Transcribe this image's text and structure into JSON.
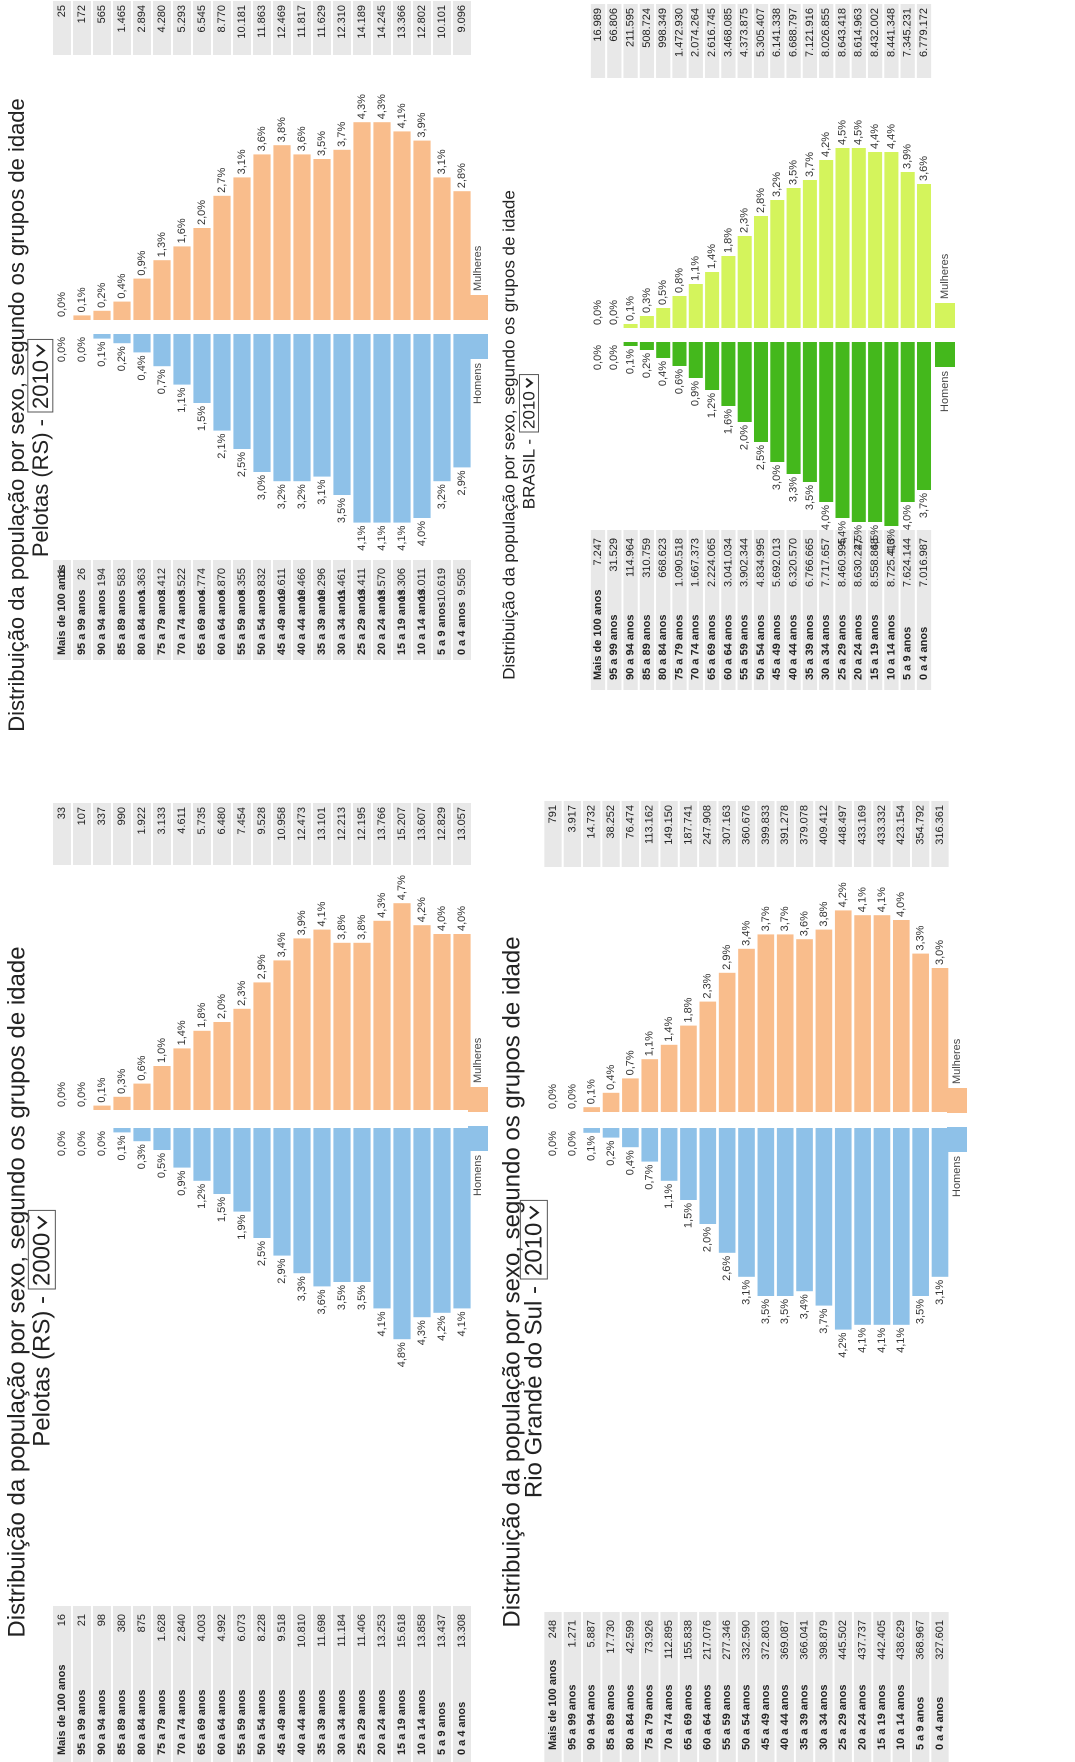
{
  "chart_data": [
    {
      "type": "bar",
      "title": "Distribuição da população por sexo, segundo os grupos de idade",
      "subtitle": "Pelotas (RS) -",
      "selector": "2000",
      "categories": [
        "Mais de 100 anos",
        "95 a 99 anos",
        "90 a 94 anos",
        "85 a 89 anos",
        "80 a 84 anos",
        "75 a 79 anos",
        "70 a 74 anos",
        "65 a 69 anos",
        "60 a 64 anos",
        "55 a 59 anos",
        "50 a 54 anos",
        "45 a 49 anos",
        "40 a 44 anos",
        "35 a 39 anos",
        "30 a 34 anos",
        "25 a 29 anos",
        "20 a 24 anos",
        "15 a 19 anos",
        "10 a 14 anos",
        "5 a 9 anos",
        "0 a 4 anos"
      ],
      "series": [
        {
          "name": "Homens",
          "color": "#8ec1e8",
          "values": [
            0,
            0,
            0,
            0.1,
            0.3,
            0.5,
            0.9,
            1.2,
            1.5,
            1.9,
            2.5,
            2.9,
            3.3,
            3.6,
            3.5,
            3.5,
            4.1,
            4.8,
            4.3,
            4.2,
            4.1
          ],
          "value_labels": [
            "0,0%",
            "0,0%",
            "0,0%",
            "0,1%",
            "0,3%",
            "0,5%",
            "0,9%",
            "1,2%",
            "1,5%",
            "1,9%",
            "2,5%",
            "2,9%",
            "3,3%",
            "3,6%",
            "3,5%",
            "3,5%",
            "4,1%",
            "4,8%",
            "4,3%",
            "4,2%",
            "4,1%"
          ],
          "population": [
            16,
            21,
            98,
            380,
            875,
            1628,
            2840,
            4003,
            4992,
            6073,
            8228,
            9518,
            10810,
            11698,
            11184,
            11406,
            13253,
            15618,
            13858,
            13437,
            13308
          ],
          "population_labels": [
            "16",
            "21",
            "98",
            "380",
            "875",
            "1.628",
            "2.840",
            "4.003",
            "4.992",
            "6.073",
            "8.228",
            "9.518",
            "10.810",
            "11.698",
            "11.184",
            "11.406",
            "13.253",
            "15.618",
            "13.858",
            "13.437",
            "13.308"
          ]
        },
        {
          "name": "Mulheres",
          "color": "#f9bd8c",
          "values": [
            0,
            0,
            0.1,
            0.3,
            0.6,
            1.0,
            1.4,
            1.8,
            2.0,
            2.3,
            2.9,
            3.4,
            3.9,
            4.1,
            3.8,
            3.8,
            4.3,
            4.7,
            4.2,
            4.0,
            4.0
          ],
          "value_labels": [
            "0,0%",
            "0,0%",
            "0,1%",
            "0,3%",
            "0,6%",
            "1,0%",
            "1,4%",
            "1,8%",
            "2,0%",
            "2,3%",
            "2,9%",
            "3,4%",
            "3,9%",
            "4,1%",
            "3,8%",
            "3,8%",
            "4,3%",
            "4,7%",
            "4,2%",
            "4,0%",
            "4,0%"
          ],
          "population": [
            33,
            107,
            337,
            990,
            1922,
            3133,
            4611,
            5735,
            6480,
            7454,
            9528,
            10958,
            12473,
            13101,
            12213,
            12195,
            13766,
            15207,
            13607,
            12829,
            13057
          ],
          "population_labels": [
            "33",
            "107",
            "337",
            "990",
            "1.922",
            "3.133",
            "4.611",
            "5.735",
            "6.480",
            "7.454",
            "9.528",
            "10.958",
            "12.473",
            "13.101",
            "12.213",
            "12.195",
            "13.766",
            "15.207",
            "13.607",
            "12.829",
            "13.057"
          ]
        }
      ]
    },
    {
      "type": "bar",
      "title": "Distribuição da população por sexo, segundo os grupos de idade",
      "subtitle": "Pelotas (RS) -",
      "selector": "2010",
      "categories": [
        "Mais de 100 anos",
        "95 a 99 anos",
        "90 a 94 anos",
        "85 a 89 anos",
        "80 a 84 anos",
        "75 a 79 anos",
        "70 a 74 anos",
        "65 a 69 anos",
        "60 a 64 anos",
        "55 a 59 anos",
        "50 a 54 anos",
        "45 a 49 anos",
        "40 a 44 anos",
        "35 a 39 anos",
        "30 a 34 anos",
        "25 a 29 anos",
        "20 a 24 anos",
        "15 a 19 anos",
        "10 a 14 anos",
        "5 a 9 anos",
        "0 a 4 anos"
      ],
      "series": [
        {
          "name": "Homens",
          "color": "#8ec1e8",
          "values": [
            0,
            0,
            0.1,
            0.2,
            0.4,
            0.7,
            1.1,
            1.5,
            2.1,
            2.5,
            3.0,
            3.2,
            3.2,
            3.1,
            3.5,
            4.1,
            4.1,
            4.1,
            4.0,
            3.2,
            2.9
          ],
          "value_labels": [
            "0,0%",
            "0,0%",
            "0,1%",
            "0,2%",
            "0,4%",
            "0,7%",
            "1,1%",
            "1,5%",
            "2,1%",
            "2,5%",
            "3,0%",
            "3,2%",
            "3,2%",
            "3,1%",
            "3,5%",
            "4,1%",
            "4,1%",
            "4,1%",
            "4,0%",
            "3,2%",
            "2,9%"
          ],
          "population": [
            11,
            26,
            194,
            583,
            1363,
            2412,
            3522,
            4774,
            6870,
            8355,
            9832,
            10611,
            10466,
            10296,
            11461,
            13411,
            13570,
            13306,
            13011,
            10619,
            9505
          ],
          "population_labels": [
            "11",
            "26",
            "194",
            "583",
            "1.363",
            "2.412",
            "3.522",
            "4.774",
            "6.870",
            "8.355",
            "9.832",
            "10.611",
            "10.466",
            "10.296",
            "11.461",
            "13.411",
            "13.570",
            "13.306",
            "13.011",
            "10.619",
            "9.505"
          ]
        },
        {
          "name": "Mulheres",
          "color": "#f9bd8c",
          "values": [
            0,
            0.1,
            0.2,
            0.4,
            0.9,
            1.3,
            1.6,
            2.0,
            2.7,
            3.1,
            3.6,
            3.8,
            3.6,
            3.5,
            3.7,
            4.3,
            4.3,
            4.1,
            3.9,
            3.1,
            2.8
          ],
          "value_labels": [
            "0,0%",
            "0,1%",
            "0,2%",
            "0,4%",
            "0,9%",
            "1,3%",
            "1,6%",
            "2,0%",
            "2,7%",
            "3,1%",
            "3,6%",
            "3,8%",
            "3,6%",
            "3,5%",
            "3,7%",
            "4,3%",
            "4,3%",
            "4,1%",
            "3,9%",
            "3,1%",
            "2,8%"
          ],
          "population": [
            25,
            172,
            565,
            1465,
            2894,
            4280,
            5293,
            6545,
            8770,
            10181,
            11863,
            12469,
            11817,
            11629,
            12310,
            14189,
            14245,
            13366,
            12802,
            10101,
            9096
          ],
          "population_labels": [
            "25",
            "172",
            "565",
            "1.465",
            "2.894",
            "4.280",
            "5.293",
            "6.545",
            "8.770",
            "10.181",
            "11.863",
            "12.469",
            "11.817",
            "11.629",
            "12.310",
            "14.189",
            "14.245",
            "13.366",
            "12.802",
            "10.101",
            "9.096"
          ]
        }
      ]
    },
    {
      "type": "bar",
      "title": "Distribuição da população por sexo, segundo os grupos de idade",
      "subtitle": "BRASIL -",
      "selector": "2010",
      "categories": [
        "Mais de 100 anos",
        "95 a 99 anos",
        "90 a 94 anos",
        "85 a 89 anos",
        "80 a 84 anos",
        "75 a 79 anos",
        "70 a 74 anos",
        "65 a 69 anos",
        "60 a 64 anos",
        "55 a 59 anos",
        "50 a 54 anos",
        "45 a 49 anos",
        "40 a 44 anos",
        "35 a 39 anos",
        "30 a 34 anos",
        "25 a 29 anos",
        "20 a 24 anos",
        "15 a 19 anos",
        "10 a 14 anos",
        "5 a 9 anos",
        "0 a 4 anos"
      ],
      "series": [
        {
          "name": "Homens",
          "color": "#44b81c",
          "values": [
            0,
            0,
            0.1,
            0.2,
            0.4,
            0.6,
            0.9,
            1.2,
            1.6,
            2.0,
            2.5,
            3.0,
            3.3,
            3.5,
            4.0,
            4.4,
            4.5,
            4.5,
            4.6,
            4.0,
            3.7
          ],
          "value_labels": [
            "0,0%",
            "0,0%",
            "0,1%",
            "0,2%",
            "0,4%",
            "0,6%",
            "0,9%",
            "1,2%",
            "1,6%",
            "2,0%",
            "2,5%",
            "3,0%",
            "3,3%",
            "3,5%",
            "4,0%",
            "4,4%",
            "4,5%",
            "4,5%",
            "4,6%",
            "4,0%",
            "3,7%"
          ],
          "population": [
            7247,
            31529,
            114964,
            310759,
            668623,
            1090518,
            1667373,
            2224065,
            3041034,
            3902344,
            4834995,
            5692013,
            6320570,
            6766665,
            7717657,
            8460995,
            8630227,
            8558868,
            8725413,
            7624144,
            7016987
          ],
          "population_labels": [
            "7.247",
            "31.529",
            "114.964",
            "310.759",
            "668.623",
            "1.090.518",
            "1.667.373",
            "2.224.065",
            "3.041.034",
            "3.902.344",
            "4.834.995",
            "5.692.013",
            "6.320.570",
            "6.766.665",
            "7.717.657",
            "8.460.995",
            "8.630.227",
            "8.558.868",
            "8.725.413",
            "7.624.144",
            "7.016.987"
          ]
        },
        {
          "name": "Mulheres",
          "color": "#d4f45c",
          "values": [
            0,
            0,
            0.1,
            0.3,
            0.5,
            0.8,
            1.1,
            1.4,
            1.8,
            2.3,
            2.8,
            3.2,
            3.5,
            3.7,
            4.2,
            4.5,
            4.5,
            4.4,
            4.4,
            3.9,
            3.6
          ],
          "value_labels": [
            "0,0%",
            "0,0%",
            "0,1%",
            "0,3%",
            "0,5%",
            "0,8%",
            "1,1%",
            "1,4%",
            "1,8%",
            "2,3%",
            "2,8%",
            "3,2%",
            "3,5%",
            "3,7%",
            "4,2%",
            "4,5%",
            "4,5%",
            "4,4%",
            "4,4%",
            "3,9%",
            "3,6%"
          ],
          "population": [
            16989,
            66806,
            211595,
            508724,
            998349,
            1472930,
            2074264,
            2616745,
            3468085,
            4373875,
            5305407,
            6141338,
            6688797,
            7121916,
            8026855,
            8643418,
            8614963,
            8432002,
            8441348,
            7345231,
            6779172
          ],
          "population_labels": [
            "16.989",
            "66.806",
            "211.595",
            "508.724",
            "998.349",
            "1.472.930",
            "2.074.264",
            "2.616.745",
            "3.468.085",
            "4.373.875",
            "5.305.407",
            "6.141.338",
            "6.688.797",
            "7.121.916",
            "8.026.855",
            "8.643.418",
            "8.614.963",
            "8.432.002",
            "8.441.348",
            "7.345.231",
            "6.779.172"
          ]
        }
      ]
    },
    {
      "type": "bar",
      "title": "Distribuição da população por sexo, segundo os grupos de idade",
      "subtitle": "Rio Grande do Sul -",
      "selector": "2010",
      "categories": [
        "Mais de 100 anos",
        "95 a 99 anos",
        "90 a 94 anos",
        "85 a 89 anos",
        "80 a 84 anos",
        "75 a 79 anos",
        "70 a 74 anos",
        "65 a 69 anos",
        "60 a 64 anos",
        "55 a 59 anos",
        "50 a 54 anos",
        "45 a 49 anos",
        "40 a 44 anos",
        "35 a 39 anos",
        "30 a 34 anos",
        "25 a 29 anos",
        "20 a 24 anos",
        "15 a 19 anos",
        "10 a 14 anos",
        "5 a 9 anos",
        "0 a 4 anos"
      ],
      "series": [
        {
          "name": "Homens",
          "color": "#8ec1e8",
          "values": [
            0,
            0,
            0.1,
            0.2,
            0.4,
            0.7,
            1.1,
            1.5,
            2.0,
            2.6,
            3.1,
            3.5,
            3.5,
            3.4,
            3.7,
            4.2,
            4.1,
            4.1,
            4.1,
            3.5,
            3.1
          ],
          "value_labels": [
            "0,0%",
            "0,0%",
            "0,1%",
            "0,2%",
            "0,4%",
            "0,7%",
            "1,1%",
            "1,5%",
            "2,0%",
            "2,6%",
            "3,1%",
            "3,5%",
            "3,5%",
            "3,4%",
            "3,7%",
            "4,2%",
            "4,1%",
            "4,1%",
            "4,1%",
            "3,5%",
            "3,1%"
          ],
          "population": [
            248,
            1271,
            5887,
            17730,
            42599,
            73926,
            112895,
            155838,
            217076,
            277346,
            332590,
            372803,
            369087,
            366041,
            398879,
            445502,
            437737,
            442405,
            438629,
            368967,
            327601
          ],
          "population_labels": [
            "248",
            "1.271",
            "5.887",
            "17.730",
            "42.599",
            "73.926",
            "112.895",
            "155.838",
            "217.076",
            "277.346",
            "332.590",
            "372.803",
            "369.087",
            "366.041",
            "398.879",
            "445.502",
            "437.737",
            "442.405",
            "438.629",
            "368.967",
            "327.601"
          ]
        },
        {
          "name": "Mulheres",
          "color": "#f9bd8c",
          "values": [
            0,
            0,
            0.1,
            0.4,
            0.7,
            1.1,
            1.4,
            1.8,
            2.3,
            2.9,
            3.4,
            3.7,
            3.7,
            3.6,
            3.8,
            4.2,
            4.1,
            4.1,
            4.0,
            3.3,
            3.0
          ],
          "value_labels": [
            "0,0%",
            "0,0%",
            "0,1%",
            "0,4%",
            "0,7%",
            "1,1%",
            "1,4%",
            "1,8%",
            "2,3%",
            "2,9%",
            "3,4%",
            "3,7%",
            "3,7%",
            "3,6%",
            "3,8%",
            "4,2%",
            "4,1%",
            "4,1%",
            "4,0%",
            "3,3%",
            "3,0%"
          ],
          "population": [
            791,
            3917,
            14732,
            38252,
            76474,
            113162,
            149150,
            187741,
            247908,
            307163,
            360676,
            399833,
            391278,
            379078,
            409412,
            448497,
            433169,
            433332,
            423154,
            354792,
            316361
          ],
          "population_labels": [
            "791",
            "3.917",
            "14.732",
            "38.252",
            "76.474",
            "113.162",
            "149.150",
            "187.741",
            "247.908",
            "307.163",
            "360.676",
            "399.833",
            "391.278",
            "379.078",
            "409.412",
            "448.497",
            "433.169",
            "433.332",
            "423.154",
            "354.792",
            "316.361"
          ]
        }
      ]
    }
  ]
}
